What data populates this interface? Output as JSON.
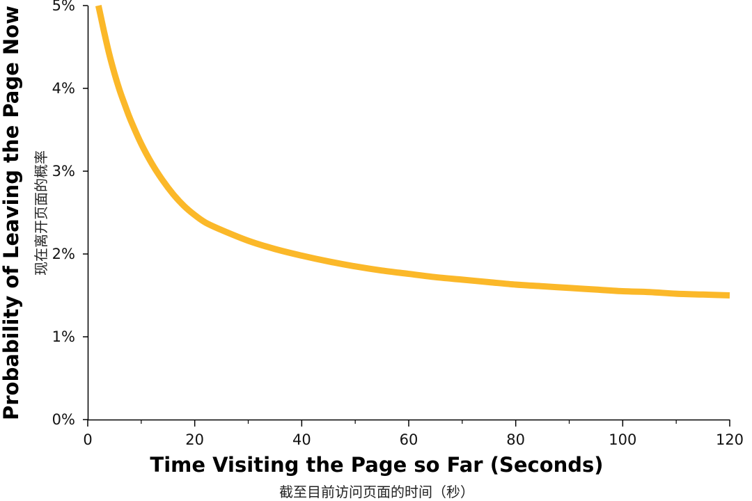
{
  "chart_data": {
    "type": "line",
    "xlabel": "Time Visiting the Page so Far (Seconds)",
    "xlabel_cn": "截至目前访问页面的时间（秒）",
    "ylabel": "Probability of Leaving the Page Now",
    "ylabel_cn": "现在离开页面的概率",
    "xlim": [
      0,
      120
    ],
    "ylim": [
      0,
      5
    ],
    "xticks": [
      0,
      20,
      40,
      60,
      80,
      100,
      120
    ],
    "xtick_labels": [
      "0",
      "20",
      "40",
      "60",
      "80",
      "100",
      "120"
    ],
    "minor_xticks": [
      10,
      30,
      50,
      70,
      90,
      110
    ],
    "yticks": [
      0,
      1,
      2,
      3,
      4,
      5
    ],
    "ytick_labels": [
      "0%",
      "1%",
      "2%",
      "3%",
      "4%",
      "5%"
    ],
    "grid": false,
    "series": [
      {
        "color": "#FBB829",
        "x": [
          2,
          2.5,
          3,
          4,
          5,
          6,
          7,
          8,
          10,
          12,
          14,
          16,
          18,
          20,
          22,
          25,
          30,
          35,
          40,
          45,
          50,
          55,
          60,
          65,
          70,
          75,
          80,
          85,
          90,
          95,
          100,
          105,
          110,
          115,
          120
        ],
        "y": [
          5.0,
          4.85,
          4.7,
          4.42,
          4.18,
          3.97,
          3.79,
          3.62,
          3.33,
          3.09,
          2.89,
          2.72,
          2.58,
          2.47,
          2.38,
          2.29,
          2.16,
          2.06,
          1.98,
          1.91,
          1.85,
          1.8,
          1.76,
          1.72,
          1.69,
          1.66,
          1.63,
          1.61,
          1.59,
          1.57,
          1.55,
          1.54,
          1.52,
          1.51,
          1.5
        ]
      }
    ]
  }
}
